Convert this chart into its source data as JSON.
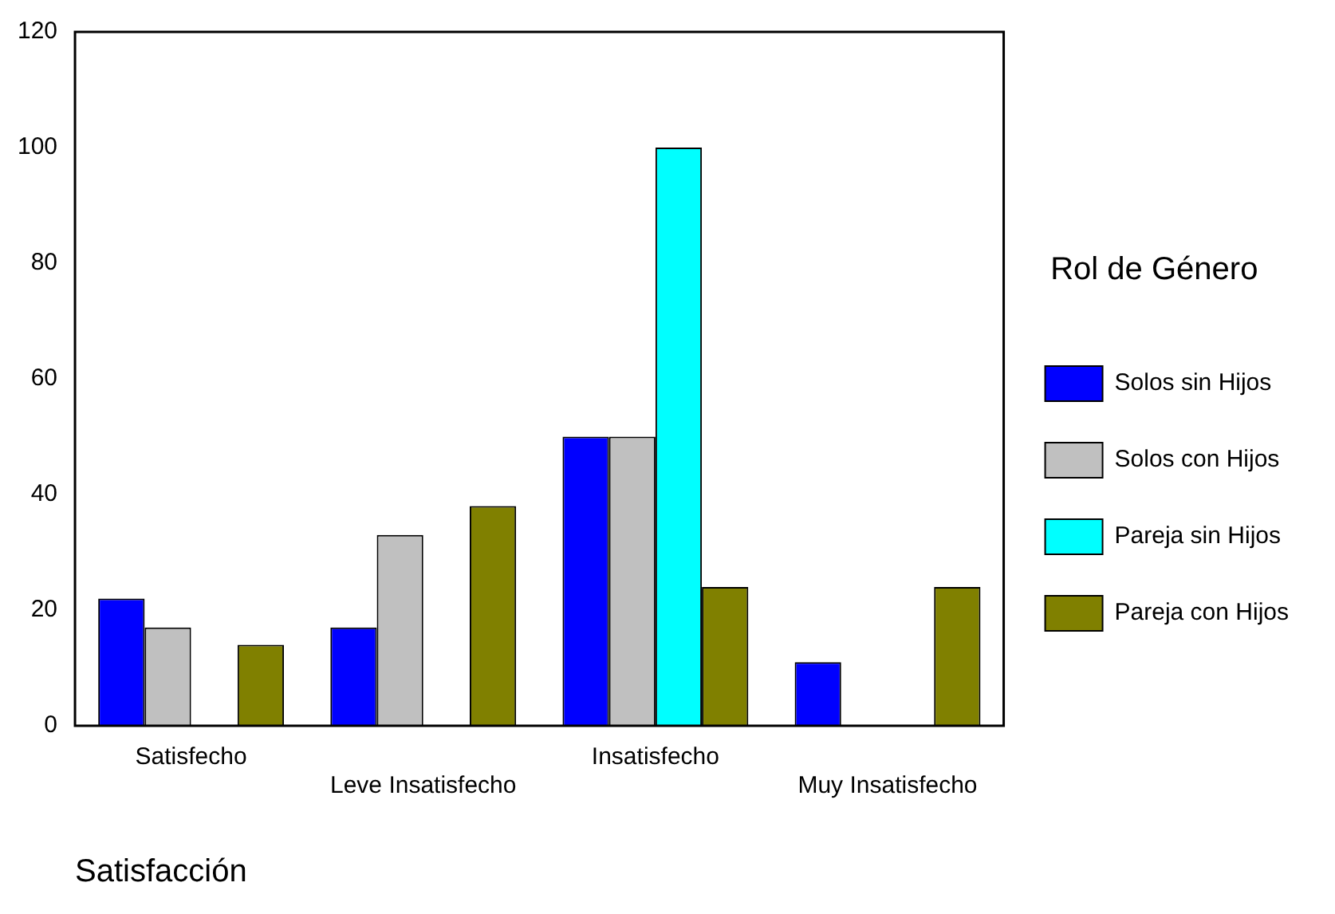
{
  "chart_data": {
    "type": "bar",
    "xlabel": "Satisfacción",
    "legend_title": "Rol de Género",
    "categories": [
      "Satisfecho",
      "Leve Insatisfecho",
      "Insatisfecho",
      "Muy Insatisfecho"
    ],
    "series": [
      {
        "name": "Solos sin Hijos",
        "color": "#0000ff",
        "values": [
          22,
          17,
          50,
          11
        ]
      },
      {
        "name": "Solos con Hijos",
        "color": "#c0c0c0",
        "values": [
          17,
          33,
          50,
          0
        ]
      },
      {
        "name": "Pareja sin Hijos",
        "color": "#00ffff",
        "values": [
          0,
          0,
          100,
          0
        ]
      },
      {
        "name": "Pareja con Hijos",
        "color": "#808000",
        "values": [
          14,
          38,
          24,
          24
        ]
      }
    ],
    "ylim": [
      0,
      120
    ],
    "yticks": [
      0,
      20,
      40,
      60,
      80,
      100,
      120
    ],
    "grid": false,
    "legend": "right"
  }
}
